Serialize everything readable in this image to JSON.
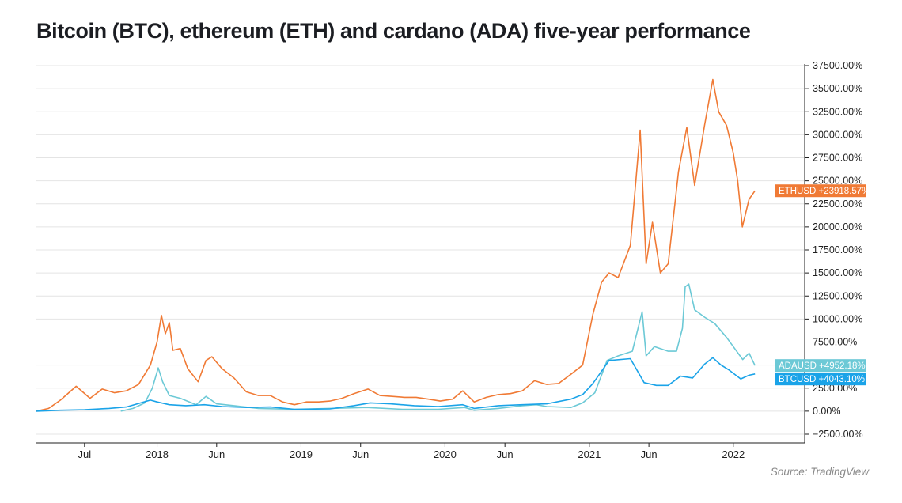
{
  "title": "Bitcoin (BTC), ethereum (ETH) and cardano (ADA) five-year performance",
  "source": "Source: TradingView",
  "chart_data": {
    "type": "line",
    "title": "Bitcoin (BTC), ethereum (ETH) and cardano (ADA) five-year performance",
    "y_unit": "%",
    "ylim": [
      -2500,
      37500
    ],
    "y_ticks": [
      -2500,
      0,
      2500,
      5000,
      7500,
      10000,
      12500,
      15000,
      17500,
      20000,
      22500,
      25000,
      27500,
      30000,
      32500,
      35000,
      37500
    ],
    "y_tick_labels": [
      "−2500.00%",
      "0.00%",
      "2500.00%",
      "5000.00%",
      "7500.00%",
      "10000.00%",
      "12500.00%",
      "15000.00%",
      "17500.00%",
      "20000.00%",
      "22500.00%",
      "25000.00%",
      "27500.00%",
      "30000.00%",
      "32500.00%",
      "35000.00%",
      "37500.00%"
    ],
    "xlim": [
      "2017-03-01",
      "2022-07-01"
    ],
    "x_ticks": [
      {
        "date": "2017-07-01",
        "label": "Jul"
      },
      {
        "date": "2018-01-01",
        "label": "2018"
      },
      {
        "date": "2018-06-01",
        "label": "Jun"
      },
      {
        "date": "2019-01-01",
        "label": "2019"
      },
      {
        "date": "2019-06-01",
        "label": "Jun"
      },
      {
        "date": "2020-01-01",
        "label": "2020"
      },
      {
        "date": "2020-06-01",
        "label": "Jun"
      },
      {
        "date": "2021-01-01",
        "label": "2021"
      },
      {
        "date": "2021-06-01",
        "label": "Jun"
      },
      {
        "date": "2022-01-01",
        "label": "2022"
      }
    ],
    "grid": true,
    "series": [
      {
        "name": "ETHUSD",
        "color": "#f07a35",
        "last_value_label": "ETHUSD +23918.57%",
        "last_value": 23918.57,
        "points": [
          [
            "2017-03-01",
            0
          ],
          [
            "2017-04-01",
            300
          ],
          [
            "2017-05-01",
            1200
          ],
          [
            "2017-06-10",
            2700
          ],
          [
            "2017-07-15",
            1400
          ],
          [
            "2017-08-15",
            2400
          ],
          [
            "2017-09-15",
            2000
          ],
          [
            "2017-10-15",
            2200
          ],
          [
            "2017-11-15",
            2900
          ],
          [
            "2017-12-15",
            5000
          ],
          [
            "2018-01-01",
            7500
          ],
          [
            "2018-01-12",
            10400
          ],
          [
            "2018-01-22",
            8400
          ],
          [
            "2018-02-01",
            9600
          ],
          [
            "2018-02-10",
            6600
          ],
          [
            "2018-03-01",
            6800
          ],
          [
            "2018-03-20",
            4600
          ],
          [
            "2018-04-15",
            3200
          ],
          [
            "2018-05-05",
            5500
          ],
          [
            "2018-05-20",
            5900
          ],
          [
            "2018-06-15",
            4600
          ],
          [
            "2018-07-15",
            3600
          ],
          [
            "2018-08-15",
            2100
          ],
          [
            "2018-09-15",
            1700
          ],
          [
            "2018-10-15",
            1700
          ],
          [
            "2018-11-15",
            1000
          ],
          [
            "2018-12-15",
            700
          ],
          [
            "2019-01-15",
            1000
          ],
          [
            "2019-02-15",
            1000
          ],
          [
            "2019-03-15",
            1100
          ],
          [
            "2019-04-15",
            1400
          ],
          [
            "2019-05-15",
            1900
          ],
          [
            "2019-06-20",
            2400
          ],
          [
            "2019-07-20",
            1700
          ],
          [
            "2019-08-20",
            1600
          ],
          [
            "2019-09-20",
            1500
          ],
          [
            "2019-10-20",
            1500
          ],
          [
            "2019-11-20",
            1300
          ],
          [
            "2019-12-20",
            1100
          ],
          [
            "2020-01-20",
            1300
          ],
          [
            "2020-02-15",
            2200
          ],
          [
            "2020-03-15",
            1000
          ],
          [
            "2020-04-15",
            1500
          ],
          [
            "2020-05-15",
            1800
          ],
          [
            "2020-06-15",
            1900
          ],
          [
            "2020-07-15",
            2200
          ],
          [
            "2020-08-15",
            3300
          ],
          [
            "2020-09-15",
            2900
          ],
          [
            "2020-10-15",
            3000
          ],
          [
            "2020-11-15",
            4000
          ],
          [
            "2020-12-15",
            5000
          ],
          [
            "2021-01-10",
            10500
          ],
          [
            "2021-02-01",
            14000
          ],
          [
            "2021-02-20",
            15000
          ],
          [
            "2021-03-15",
            14500
          ],
          [
            "2021-04-15",
            18000
          ],
          [
            "2021-05-10",
            30500
          ],
          [
            "2021-05-25",
            16000
          ],
          [
            "2021-06-10",
            20500
          ],
          [
            "2021-06-30",
            15000
          ],
          [
            "2021-07-20",
            16000
          ],
          [
            "2021-08-15",
            26000
          ],
          [
            "2021-09-05",
            30800
          ],
          [
            "2021-09-25",
            24500
          ],
          [
            "2021-10-20",
            31000
          ],
          [
            "2021-11-10",
            36000
          ],
          [
            "2021-11-25",
            32500
          ],
          [
            "2021-12-15",
            31000
          ],
          [
            "2022-01-01",
            28000
          ],
          [
            "2022-01-12",
            25000
          ],
          [
            "2022-01-24",
            20000
          ],
          [
            "2022-02-10",
            23000
          ],
          [
            "2022-02-25",
            23918.57
          ]
        ]
      },
      {
        "name": "ADAUSD",
        "color": "#6cc9d6",
        "last_value_label": "ADAUSD +4952.18%",
        "last_value": 4952.18,
        "points": [
          [
            "2017-10-01",
            0
          ],
          [
            "2017-11-01",
            300
          ],
          [
            "2017-12-01",
            900
          ],
          [
            "2017-12-20",
            2500
          ],
          [
            "2018-01-04",
            4700
          ],
          [
            "2018-01-15",
            3200
          ],
          [
            "2018-02-01",
            1700
          ],
          [
            "2018-03-01",
            1400
          ],
          [
            "2018-04-10",
            700
          ],
          [
            "2018-05-05",
            1600
          ],
          [
            "2018-06-01",
            800
          ],
          [
            "2018-07-15",
            600
          ],
          [
            "2018-09-15",
            300
          ],
          [
            "2018-12-15",
            200
          ],
          [
            "2019-03-15",
            300
          ],
          [
            "2019-06-15",
            400
          ],
          [
            "2019-09-15",
            200
          ],
          [
            "2019-12-15",
            200
          ],
          [
            "2020-02-20",
            400
          ],
          [
            "2020-03-15",
            100
          ],
          [
            "2020-05-15",
            300
          ],
          [
            "2020-07-15",
            600
          ],
          [
            "2020-08-20",
            700
          ],
          [
            "2020-09-15",
            500
          ],
          [
            "2020-11-15",
            400
          ],
          [
            "2020-12-15",
            900
          ],
          [
            "2021-01-15",
            2000
          ],
          [
            "2021-02-15",
            5500
          ],
          [
            "2021-03-15",
            6000
          ],
          [
            "2021-04-20",
            6500
          ],
          [
            "2021-05-15",
            10800
          ],
          [
            "2021-05-25",
            6000
          ],
          [
            "2021-06-15",
            7000
          ],
          [
            "2021-07-20",
            6500
          ],
          [
            "2021-08-10",
            6500
          ],
          [
            "2021-08-25",
            9000
          ],
          [
            "2021-09-01",
            13500
          ],
          [
            "2021-09-10",
            13800
          ],
          [
            "2021-09-25",
            11000
          ],
          [
            "2021-10-20",
            10200
          ],
          [
            "2021-11-15",
            9500
          ],
          [
            "2021-12-15",
            8000
          ],
          [
            "2022-01-01",
            7000
          ],
          [
            "2022-01-25",
            5600
          ],
          [
            "2022-02-10",
            6300
          ],
          [
            "2022-02-25",
            4952.18
          ]
        ]
      },
      {
        "name": "BTCUSD",
        "color": "#1aa3e8",
        "last_value_label": "BTCUSD +4043.10%",
        "last_value": 4043.1,
        "points": [
          [
            "2017-03-01",
            0
          ],
          [
            "2017-05-01",
            100
          ],
          [
            "2017-07-01",
            150
          ],
          [
            "2017-09-01",
            300
          ],
          [
            "2017-10-15",
            450
          ],
          [
            "2017-12-15",
            1200
          ],
          [
            "2018-01-01",
            1000
          ],
          [
            "2018-02-01",
            700
          ],
          [
            "2018-03-15",
            600
          ],
          [
            "2018-05-01",
            700
          ],
          [
            "2018-06-15",
            500
          ],
          [
            "2018-08-15",
            400
          ],
          [
            "2018-10-15",
            450
          ],
          [
            "2018-12-15",
            200
          ],
          [
            "2019-03-15",
            250
          ],
          [
            "2019-05-15",
            600
          ],
          [
            "2019-06-25",
            900
          ],
          [
            "2019-08-15",
            800
          ],
          [
            "2019-10-15",
            600
          ],
          [
            "2019-12-15",
            500
          ],
          [
            "2020-02-15",
            700
          ],
          [
            "2020-03-15",
            300
          ],
          [
            "2020-05-15",
            600
          ],
          [
            "2020-07-15",
            700
          ],
          [
            "2020-09-15",
            800
          ],
          [
            "2020-11-15",
            1300
          ],
          [
            "2020-12-15",
            1800
          ],
          [
            "2021-01-10",
            3000
          ],
          [
            "2021-02-20",
            5500
          ],
          [
            "2021-04-15",
            5700
          ],
          [
            "2021-05-20",
            3100
          ],
          [
            "2021-06-20",
            2800
          ],
          [
            "2021-07-20",
            2800
          ],
          [
            "2021-08-20",
            3800
          ],
          [
            "2021-09-20",
            3600
          ],
          [
            "2021-10-20",
            5100
          ],
          [
            "2021-11-10",
            5800
          ],
          [
            "2021-12-01",
            5000
          ],
          [
            "2021-12-20",
            4500
          ],
          [
            "2022-01-20",
            3500
          ],
          [
            "2022-02-10",
            3900
          ],
          [
            "2022-02-25",
            4043.1
          ]
        ]
      }
    ]
  }
}
